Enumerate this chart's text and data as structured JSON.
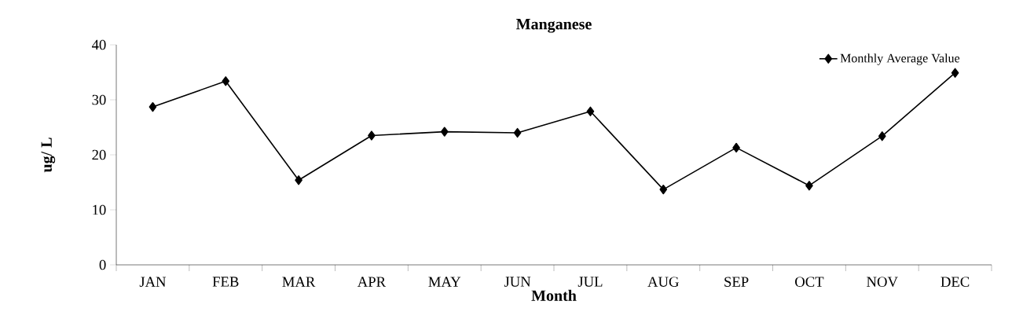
{
  "chart_data": {
    "type": "line",
    "title": "Manganese",
    "xlabel": "Month",
    "ylabel": "ug/ L",
    "categories": [
      "JAN",
      "FEB",
      "MAR",
      "APR",
      "MAY",
      "JUN",
      "JUL",
      "AUG",
      "SEP",
      "OCT",
      "NOV",
      "DEC"
    ],
    "series": [
      {
        "name": "Monthly Average Value",
        "color": "#000000",
        "values": [
          28.7,
          33.4,
          15.4,
          23.5,
          24.2,
          24.0,
          27.9,
          13.7,
          21.3,
          14.4,
          23.4,
          34.9
        ]
      }
    ],
    "ylim": [
      0,
      40
    ],
    "yticks": [
      0,
      10,
      20,
      30,
      40
    ],
    "legend": "top right",
    "marker": "diamond",
    "line_style": "solid",
    "grid": false
  }
}
